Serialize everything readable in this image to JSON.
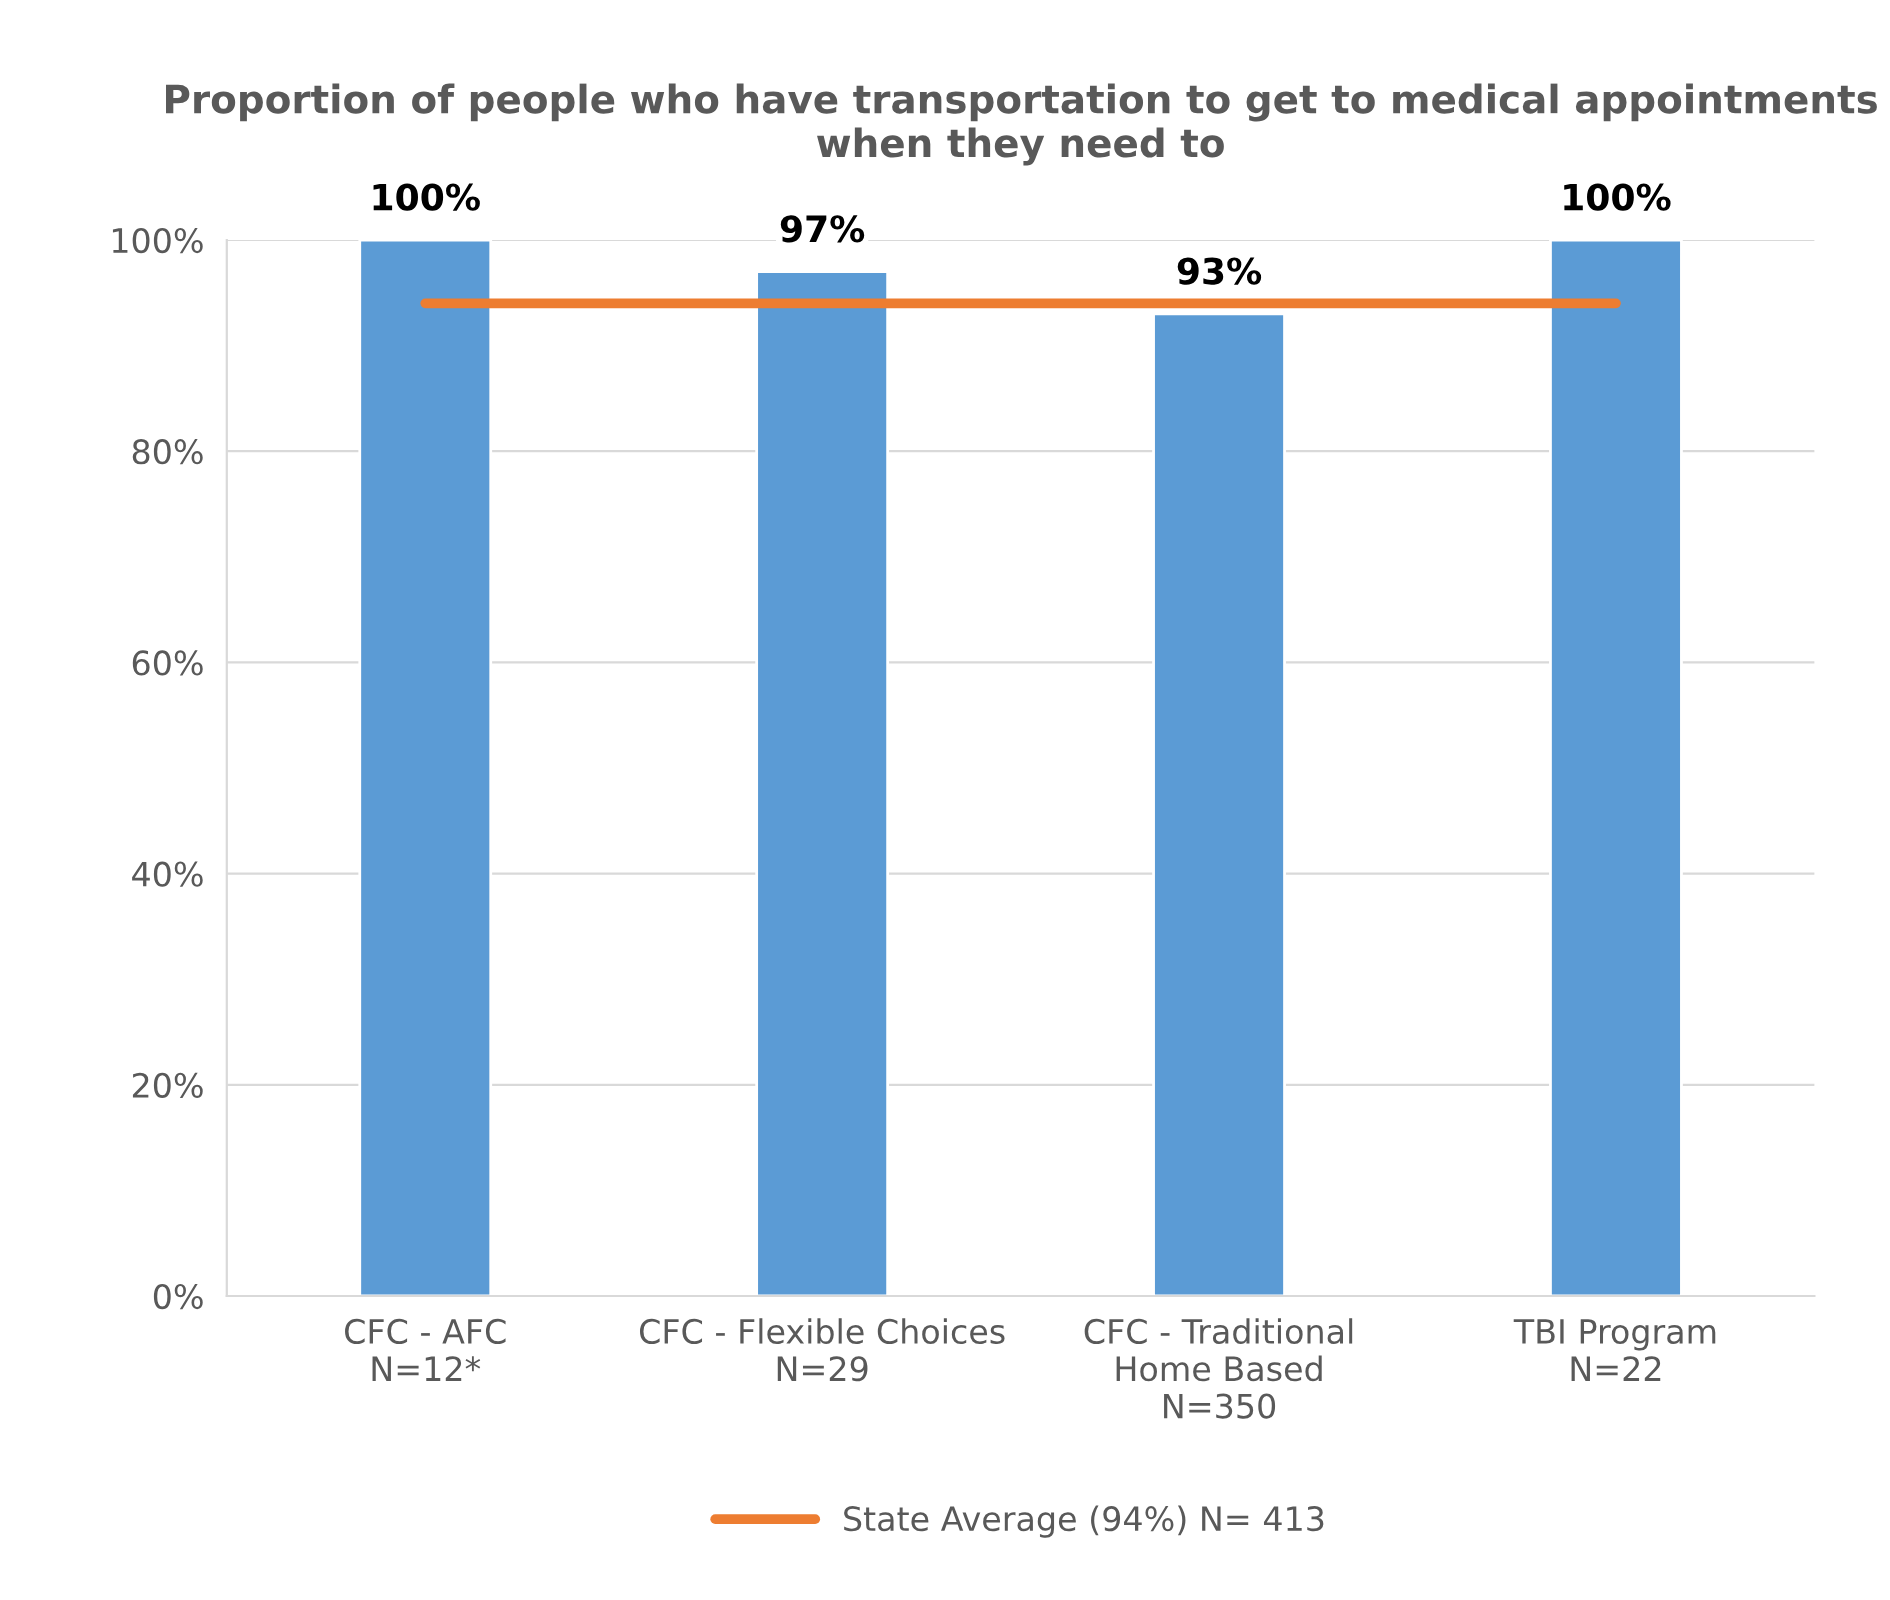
{
  "chart_data": {
    "type": "bar",
    "title": "Proportion of people who have transportation to get to medical appointments when they need to",
    "categories": [
      "CFC - AFC\nN=12*",
      "CFC - Flexible Choices\nN=29",
      "CFC - Traditional\nHome Based\nN=350",
      "TBI Program\nN=22"
    ],
    "series": [
      {
        "color": "#5b9bd5",
        "values": [
          100,
          97,
          93,
          100
        ],
        "value_labels": [
          "100%",
          "97%",
          "93%",
          "100%"
        ]
      },
      {
        "type": "line",
        "name": "State Average (94%) N= 413",
        "color": "#ed7d31",
        "values": [
          94,
          94,
          94,
          94
        ],
        "marker": "none",
        "line_style": "solid"
      }
    ],
    "ylim": [
      0,
      100
    ],
    "yticks": [
      {
        "value": 0,
        "label": "0%"
      },
      {
        "value": 20,
        "label": "20%"
      },
      {
        "value": 40,
        "label": "40%"
      },
      {
        "value": 60,
        "label": "60%"
      },
      {
        "value": 80,
        "label": "80%"
      },
      {
        "value": 100,
        "label": "100%"
      }
    ],
    "grid": "y",
    "legend": "bottom"
  }
}
